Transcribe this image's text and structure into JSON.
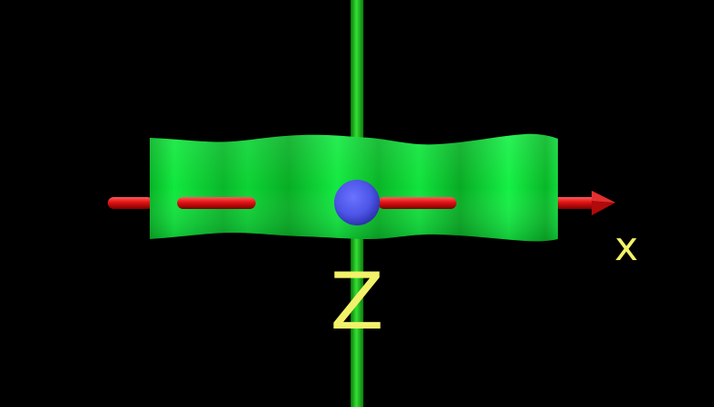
{
  "labels": {
    "x_axis": "x",
    "z_axis": "Z"
  },
  "colors": {
    "background": "#000000",
    "z_axis_rod": "#1fc41f",
    "x_axis_arrow": "#e01212",
    "x_axis_arrow_dark": "#8c0000",
    "surface": "#0fe03a",
    "surface_dark": "#06a81e",
    "sphere": "#4d55e8",
    "sphere_dark": "#2f35b8",
    "label": "#f2f26a"
  }
}
